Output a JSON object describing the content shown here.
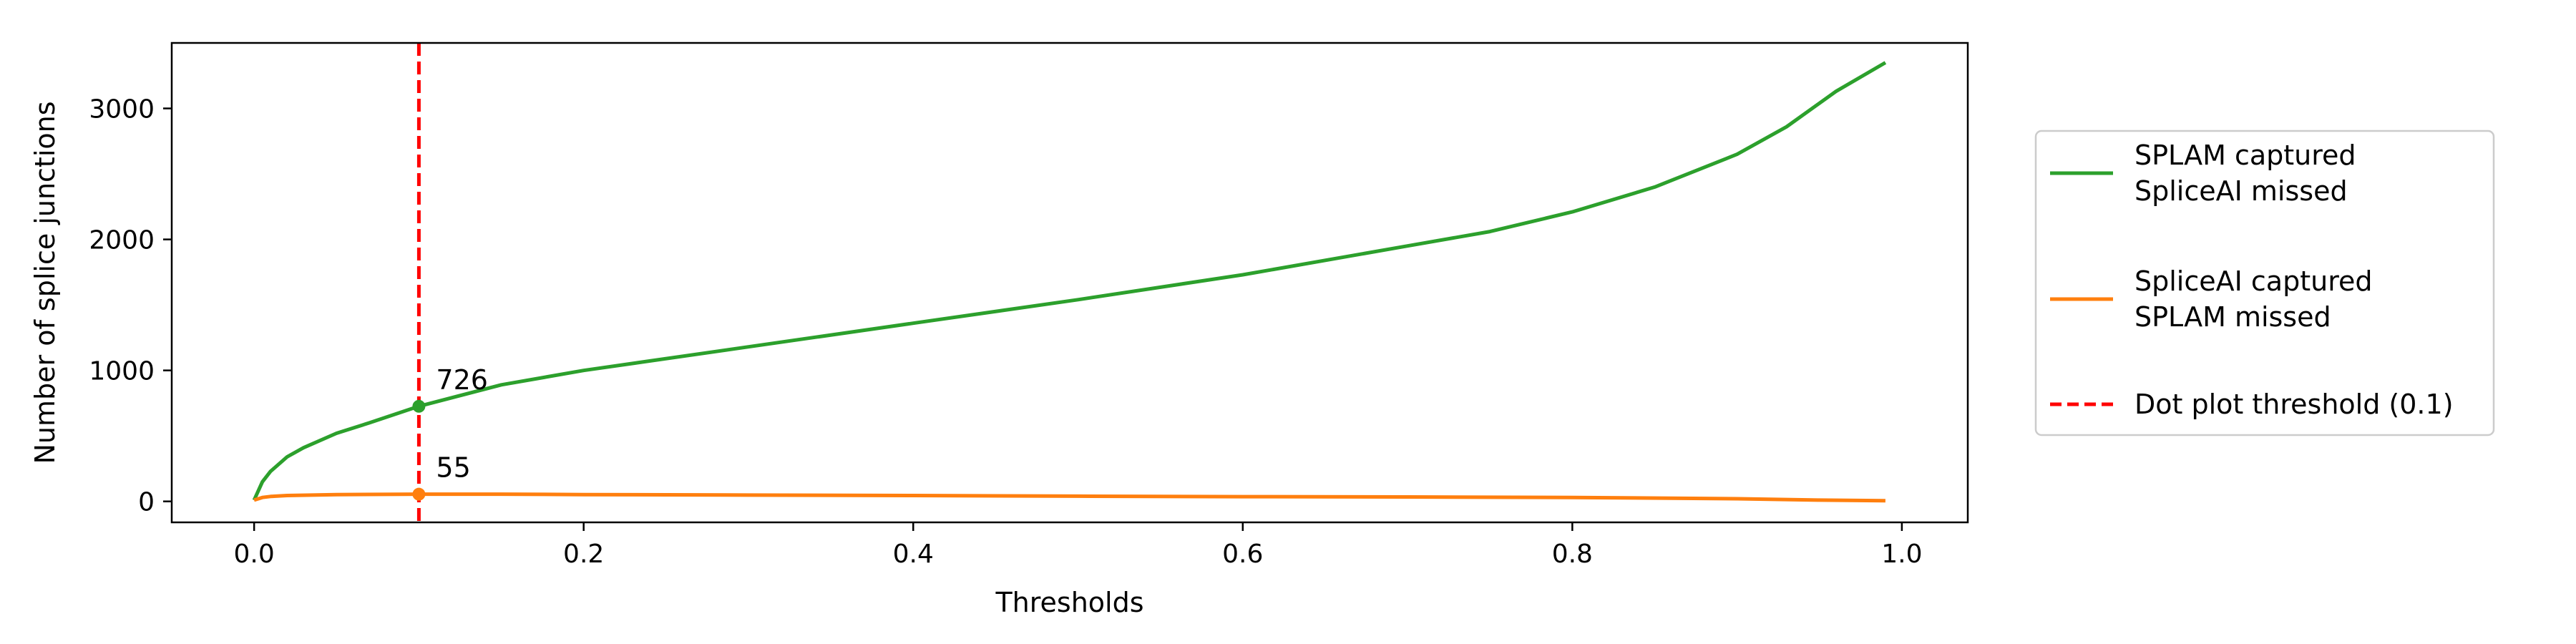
{
  "chart_data": {
    "type": "line",
    "title": "",
    "xlabel": "Thresholds",
    "ylabel": "Number of splice junctions",
    "xlim": [
      -0.05,
      1.04
    ],
    "ylim": [
      -160,
      3500
    ],
    "xticks": [
      0.0,
      0.2,
      0.4,
      0.6,
      0.8,
      1.0
    ],
    "xtick_labels": [
      "0.0",
      "0.2",
      "0.4",
      "0.6",
      "0.8",
      "1.0"
    ],
    "yticks": [
      0,
      1000,
      2000,
      3000
    ],
    "ytick_labels": [
      "0",
      "1000",
      "2000",
      "3000"
    ],
    "grid": false,
    "legend_position": "outside-right",
    "series": [
      {
        "name": "SPLAM captured\nSpliceAI missed",
        "color": "#2ca02c",
        "style": "solid",
        "x": [
          0.0,
          0.005,
          0.01,
          0.02,
          0.03,
          0.05,
          0.07,
          0.1,
          0.15,
          0.2,
          0.3,
          0.4,
          0.5,
          0.6,
          0.7,
          0.75,
          0.8,
          0.85,
          0.9,
          0.93,
          0.96,
          0.99
        ],
        "y": [
          10,
          150,
          230,
          340,
          410,
          520,
          600,
          726,
          890,
          1000,
          1180,
          1360,
          1540,
          1730,
          1950,
          2060,
          2210,
          2400,
          2650,
          2860,
          3130,
          3350
        ]
      },
      {
        "name": "SpliceAI captured\nSPLAM missed",
        "color": "#ff7f0e",
        "style": "solid",
        "x": [
          0.0,
          0.005,
          0.01,
          0.02,
          0.05,
          0.1,
          0.15,
          0.2,
          0.3,
          0.4,
          0.5,
          0.6,
          0.7,
          0.8,
          0.9,
          0.95,
          0.99
        ],
        "y": [
          10,
          30,
          38,
          45,
          52,
          55,
          55,
          52,
          48,
          45,
          40,
          36,
          34,
          30,
          20,
          10,
          5
        ]
      }
    ],
    "threshold_line": {
      "label": "Dot plot threshold (0.1)",
      "x": 0.1,
      "color": "#ff0000",
      "style": "dashed"
    },
    "markers": [
      {
        "x": 0.1,
        "y": 726,
        "label": "726",
        "color": "#2ca02c"
      },
      {
        "x": 0.1,
        "y": 55,
        "label": "55",
        "color": "#ff7f0e"
      }
    ]
  }
}
